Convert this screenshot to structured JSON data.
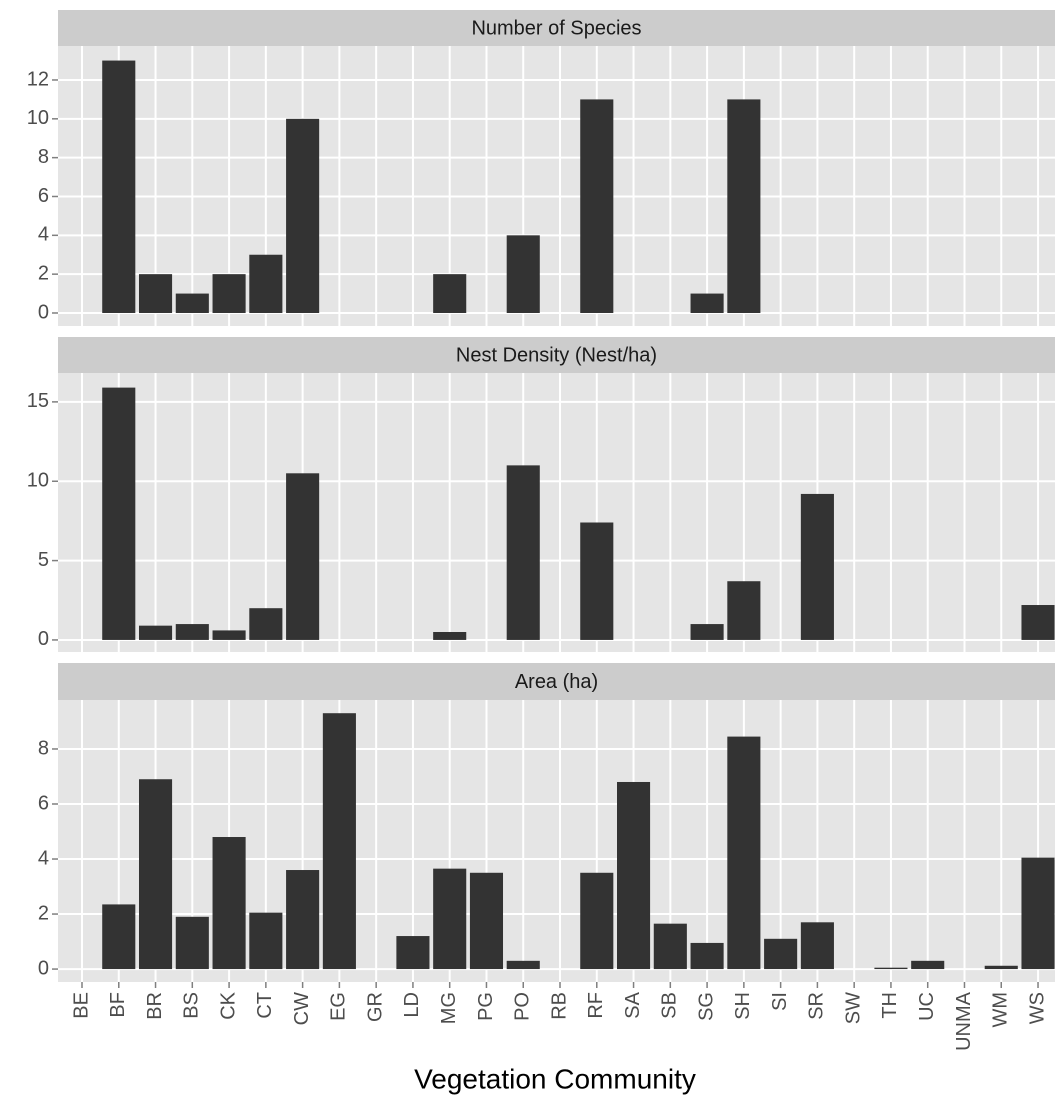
{
  "chart_data": [
    {
      "type": "bar",
      "title": "Number of Species",
      "categories": [
        "BE",
        "BF",
        "BR",
        "BS",
        "CK",
        "CT",
        "CW",
        "EG",
        "GR",
        "LD",
        "MG",
        "PG",
        "PO",
        "RB",
        "RF",
        "SA",
        "SB",
        "SG",
        "SH",
        "SI",
        "SR",
        "SW",
        "TH",
        "UC",
        "UNMA",
        "WM",
        "WS"
      ],
      "values": [
        null,
        13,
        2,
        1,
        2,
        3,
        10,
        null,
        null,
        null,
        2,
        null,
        4,
        null,
        11,
        null,
        null,
        1,
        11,
        null,
        null,
        null,
        null,
        null,
        null,
        null,
        null
      ],
      "ylim": [
        -0.67,
        13.75
      ],
      "yticks": [
        0,
        2,
        4,
        6,
        8,
        10,
        12
      ],
      "color": "#333333",
      "grid": true
    },
    {
      "type": "bar",
      "title": "Nest Density (Nest/ha)",
      "categories": [
        "BE",
        "BF",
        "BR",
        "BS",
        "CK",
        "CT",
        "CW",
        "EG",
        "GR",
        "LD",
        "MG",
        "PG",
        "PO",
        "RB",
        "RF",
        "SA",
        "SB",
        "SG",
        "SH",
        "SI",
        "SR",
        "SW",
        "TH",
        "UC",
        "UNMA",
        "WM",
        "WS"
      ],
      "values": [
        null,
        15.9,
        0.9,
        1.0,
        0.6,
        2.0,
        10.5,
        null,
        null,
        null,
        0.5,
        null,
        11.0,
        null,
        7.4,
        null,
        null,
        1.0,
        3.7,
        null,
        9.2,
        null,
        null,
        null,
        null,
        null,
        2.2
      ],
      "ylim": [
        -0.76,
        16.82
      ],
      "yticks": [
        0,
        5,
        10,
        15
      ],
      "color": "#333333",
      "grid": true
    },
    {
      "type": "bar",
      "title": "Area (ha)",
      "x_label": "Vegetation Community",
      "categories": [
        "BE",
        "BF",
        "BR",
        "BS",
        "CK",
        "CT",
        "CW",
        "EG",
        "GR",
        "LD",
        "MG",
        "PG",
        "PO",
        "RB",
        "RF",
        "SA",
        "SB",
        "SG",
        "SH",
        "SI",
        "SR",
        "SW",
        "TH",
        "UC",
        "UNMA",
        "WM",
        "WS"
      ],
      "values": [
        null,
        2.35,
        6.9,
        1.9,
        4.8,
        2.05,
        3.6,
        9.3,
        null,
        1.2,
        3.65,
        3.5,
        0.3,
        null,
        3.5,
        6.8,
        1.65,
        0.95,
        8.45,
        1.1,
        1.7,
        null,
        0.05,
        0.3,
        null,
        0.12,
        4.05
      ],
      "ylim": [
        -0.47,
        9.78
      ],
      "yticks": [
        0,
        2,
        4,
        6,
        8
      ],
      "color": "#333333",
      "grid": true
    }
  ]
}
